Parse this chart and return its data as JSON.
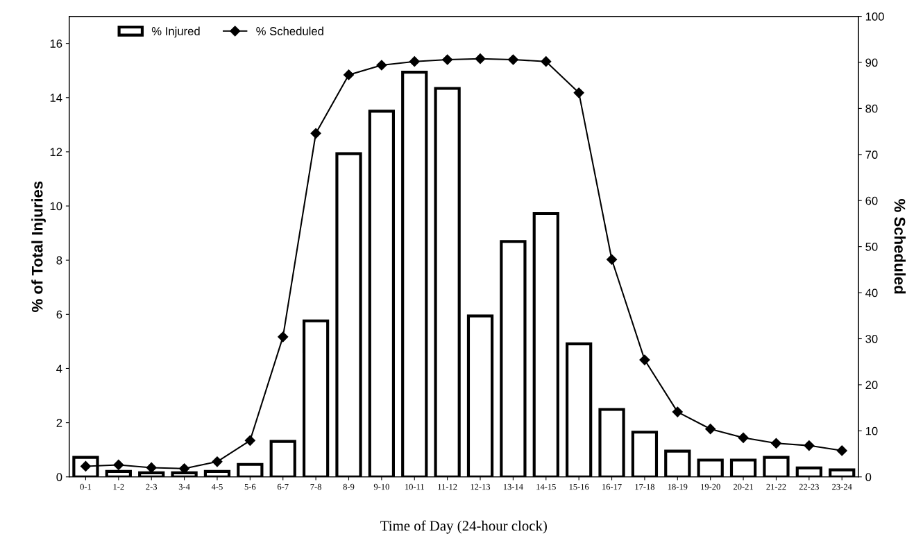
{
  "chart_data": {
    "type": "bar",
    "xlabel": "Time of Day (24-hour clock)",
    "ylabel": "% of Total Injuries",
    "y2label": "% Scheduled",
    "categories": [
      "0-1",
      "1-2",
      "2-3",
      "3-4",
      "4-5",
      "5-6",
      "6-7",
      "7-8",
      "8-9",
      "9-10",
      "10-11",
      "11-12",
      "12-13",
      "13-14",
      "14-15",
      "15-16",
      "16-17",
      "17-18",
      "18-19",
      "19-20",
      "20-21",
      "21-22",
      "22-23",
      "23-24"
    ],
    "series": [
      {
        "name": "% Injured",
        "color": "#ffffff",
        "values": [
          0.72,
          0.2,
          0.15,
          0.15,
          0.2,
          0.46,
          1.31,
          5.76,
          11.93,
          13.5,
          14.94,
          14.34,
          5.94,
          8.69,
          9.72,
          4.91,
          2.49,
          1.65,
          0.95,
          0.62,
          0.62,
          0.72,
          0.33,
          0.26
        ]
      },
      {
        "name": "% Scheduled",
        "type": "line",
        "axis": "y2",
        "color": "#000000",
        "marker": "diamond",
        "values": [
          2.3,
          2.6,
          2.0,
          1.8,
          3.3,
          7.9,
          30.4,
          74.6,
          87.3,
          89.4,
          90.2,
          90.6,
          90.8,
          90.6,
          90.2,
          83.4,
          47.2,
          25.4,
          14.1,
          10.4,
          8.5,
          7.3,
          6.8,
          5.7
        ]
      }
    ],
    "ylim": [
      0,
      17
    ],
    "yticks": [
      0,
      2,
      4,
      6,
      8,
      10,
      12,
      14,
      16
    ],
    "y2lim": [
      0,
      100
    ],
    "y2ticks": [
      0,
      10,
      20,
      30,
      40,
      50,
      60,
      70,
      80,
      90,
      100
    ],
    "legend": "top left",
    "grid": false
  }
}
